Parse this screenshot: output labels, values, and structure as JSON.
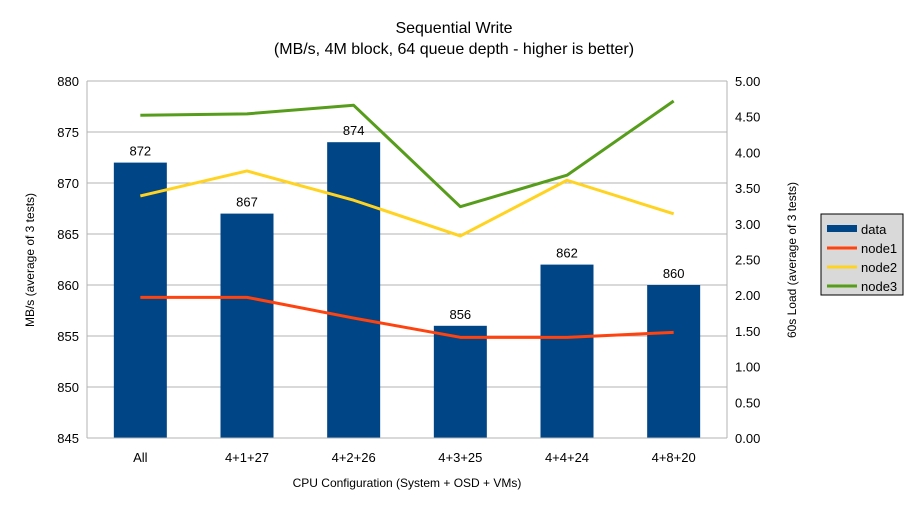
{
  "chart_data": {
    "type": "bar+line",
    "title": "Sequential Write",
    "subtitle": "(MB/s, 4M block, 64 queue depth - higher is better)",
    "xlabel": "CPU Configuration (System + OSD + VMs)",
    "ylabel": "MB/s (average of 3 tests)",
    "y2label": "60s Load (average of 3 tests)",
    "categories": [
      "All",
      "4+1+27",
      "4+2+26",
      "4+3+25",
      "4+4+24",
      "4+8+20"
    ],
    "ylim": [
      845,
      880
    ],
    "yticks": [
      "845",
      "850",
      "855",
      "860",
      "865",
      "870",
      "875",
      "880"
    ],
    "y2lim": [
      0,
      5
    ],
    "y2ticks": [
      "0.00",
      "0.50",
      "1.00",
      "1.50",
      "2.00",
      "2.50",
      "3.00",
      "3.50",
      "4.00",
      "4.50",
      "5.00"
    ],
    "grid": "horizontal",
    "legend_position": "right",
    "series": [
      {
        "name": "data",
        "type": "bar",
        "axis": "left",
        "color": "#004586",
        "values": [
          872,
          867,
          874,
          856,
          862,
          860
        ],
        "labels": [
          "872",
          "867",
          "874",
          "856",
          "862",
          "860"
        ]
      },
      {
        "name": "node1",
        "type": "line",
        "axis": "right",
        "color": "#ff420e",
        "values": [
          1.97,
          1.97,
          1.68,
          1.41,
          1.41,
          1.48
        ]
      },
      {
        "name": "node2",
        "type": "line",
        "axis": "right",
        "color": "#ffd320",
        "values": [
          3.39,
          3.74,
          3.33,
          2.83,
          3.61,
          3.14
        ]
      },
      {
        "name": "node3",
        "type": "line",
        "axis": "right",
        "color": "#579d1c",
        "values": [
          4.52,
          4.54,
          4.66,
          3.24,
          3.68,
          4.72
        ]
      }
    ]
  }
}
